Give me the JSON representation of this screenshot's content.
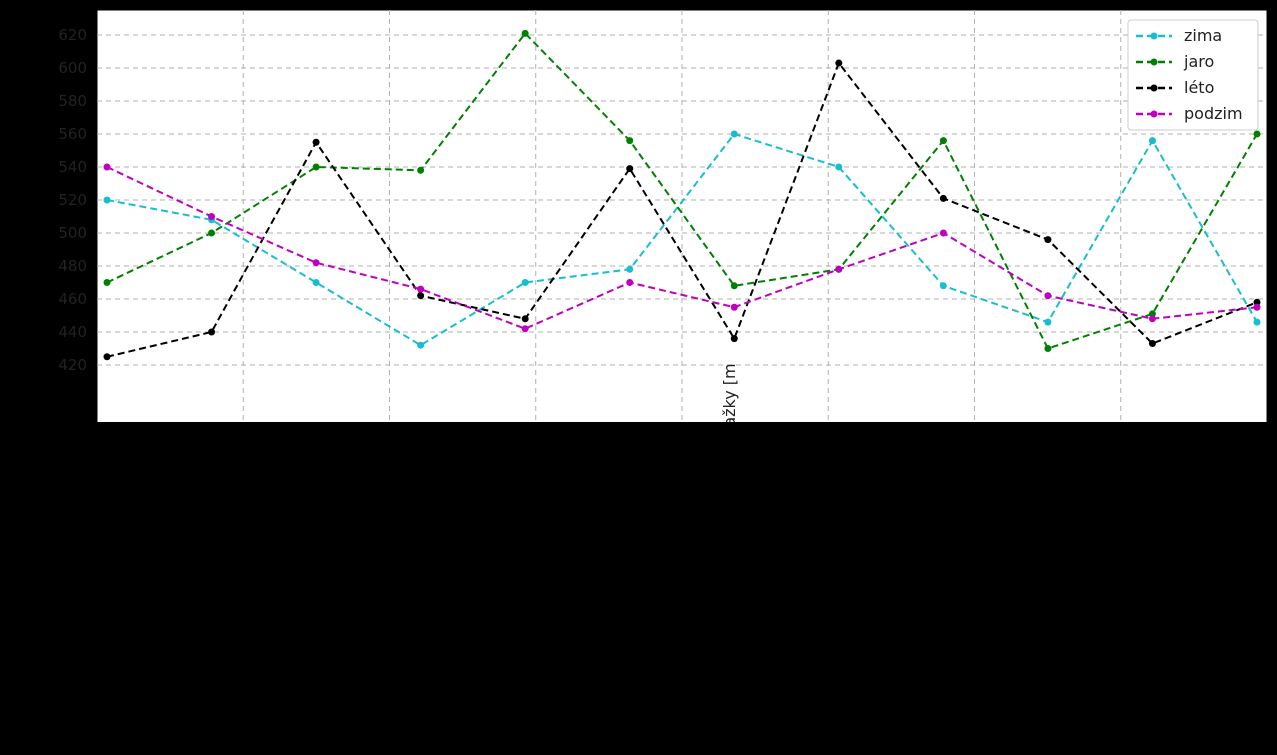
{
  "chart_data": {
    "type": "line",
    "title": "",
    "xlabel": "",
    "ylabel": "ažky [m",
    "ylim": [
      410,
      630
    ],
    "yticks": [
      420,
      440,
      460,
      480,
      500,
      520,
      540,
      560,
      580,
      600,
      620
    ],
    "grid": true,
    "grid_style": "dashed",
    "legend_position": "top-right",
    "series": [
      {
        "name": "zima",
        "color": "#17becf",
        "values": [
          520,
          508,
          470,
          432,
          470,
          478,
          560,
          540,
          468,
          446,
          556,
          446
        ]
      },
      {
        "name": "jaro",
        "color": "#008000",
        "values": [
          470,
          500,
          540,
          538,
          621,
          556,
          468,
          478,
          556,
          430,
          451,
          560
        ]
      },
      {
        "name": "léto",
        "color": "#000000",
        "values": [
          425,
          440,
          555,
          462,
          448,
          539,
          436,
          603,
          521,
          496,
          433,
          458
        ]
      },
      {
        "name": "podzim",
        "color": "#bf00bf",
        "values": [
          540,
          510,
          482,
          466,
          442,
          470,
          455,
          478,
          500,
          462,
          448,
          455
        ]
      }
    ]
  }
}
